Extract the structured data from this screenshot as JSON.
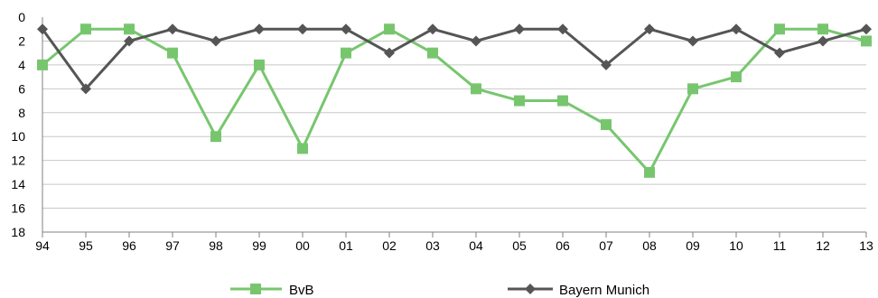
{
  "chart_data": {
    "type": "line",
    "x": [
      "94",
      "95",
      "96",
      "97",
      "98",
      "99",
      "00",
      "01",
      "02",
      "03",
      "04",
      "05",
      "06",
      "07",
      "08",
      "09",
      "10",
      "11",
      "12",
      "13"
    ],
    "ylim": [
      0,
      18
    ],
    "y_inverted": true,
    "y_ticks": [
      "0",
      "2",
      "4",
      "6",
      "8",
      "10",
      "12",
      "14",
      "16",
      "18"
    ],
    "grid": true,
    "legend_position": "bottom",
    "series": [
      {
        "name": "BvB",
        "color": "#77c66e",
        "marker": "square",
        "values": [
          4,
          1,
          1,
          3,
          10,
          4,
          11,
          3,
          1,
          3,
          6,
          7,
          7,
          9,
          13,
          6,
          5,
          1,
          1,
          2
        ]
      },
      {
        "name": "Bayern Munich",
        "color": "#555555",
        "marker": "diamond",
        "values": [
          1,
          6,
          2,
          1,
          2,
          1,
          1,
          1,
          3,
          1,
          2,
          1,
          1,
          4,
          1,
          2,
          1,
          3,
          2,
          1
        ]
      }
    ]
  }
}
